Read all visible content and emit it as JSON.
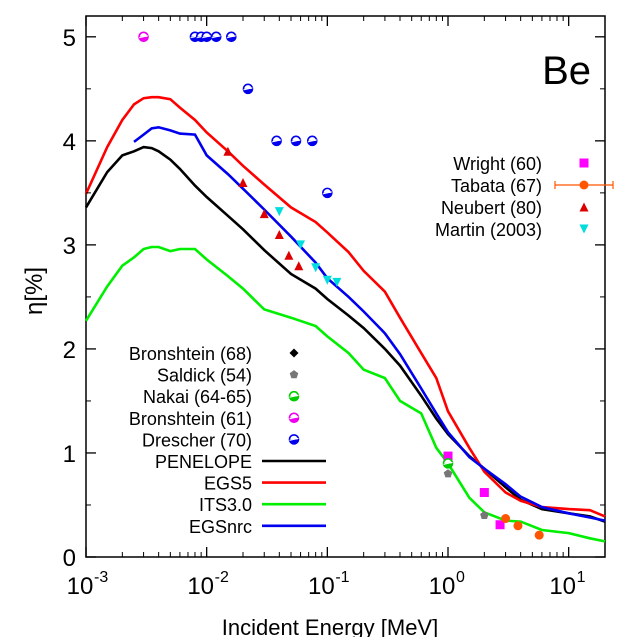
{
  "chart_data": {
    "type": "line",
    "title": "Be",
    "xlabel": "Incident Energy [MeV]",
    "ylabel": "η[%]",
    "x_scale": "log",
    "xlim": [
      0.001,
      20
    ],
    "ylim": [
      0,
      5.2
    ],
    "grid": false,
    "x_ticks": [
      {
        "value": 0.001,
        "base": "10",
        "exp": "-3"
      },
      {
        "value": 0.01,
        "base": "10",
        "exp": "-2"
      },
      {
        "value": 0.1,
        "base": "10",
        "exp": "-1"
      },
      {
        "value": 1,
        "base": "10",
        "exp": "0"
      },
      {
        "value": 10,
        "base": "10",
        "exp": "1"
      }
    ],
    "y_ticks": [
      0,
      1,
      2,
      3,
      4,
      5
    ],
    "series": [
      {
        "name": "PENELOPE",
        "kind": "line",
        "color": "#000000",
        "x": [
          0.001,
          0.0015,
          0.002,
          0.0025,
          0.003,
          0.0035,
          0.004,
          0.005,
          0.006,
          0.008,
          0.01,
          0.015,
          0.02,
          0.03,
          0.05,
          0.08,
          0.1,
          0.15,
          0.2,
          0.3,
          0.4,
          0.6,
          0.8,
          1.0,
          1.5,
          2.0,
          3.0,
          4.0,
          6.0,
          10.0,
          15.0,
          20.0
        ],
        "y": [
          3.36,
          3.7,
          3.86,
          3.9,
          3.94,
          3.93,
          3.9,
          3.82,
          3.73,
          3.57,
          3.46,
          3.28,
          3.15,
          2.95,
          2.72,
          2.58,
          2.48,
          2.32,
          2.2,
          2.0,
          1.84,
          1.55,
          1.33,
          1.18,
          0.97,
          0.85,
          0.67,
          0.55,
          0.46,
          0.42,
          0.39,
          0.34
        ]
      },
      {
        "name": "EGS5",
        "kind": "line",
        "color": "#ff0000",
        "x": [
          0.001,
          0.0015,
          0.002,
          0.0025,
          0.003,
          0.0035,
          0.004,
          0.005,
          0.006,
          0.008,
          0.01,
          0.015,
          0.02,
          0.03,
          0.05,
          0.08,
          0.1,
          0.15,
          0.2,
          0.3,
          0.4,
          0.6,
          0.8,
          1.0,
          1.5,
          2.0,
          3.0,
          4.0,
          6.0,
          10.0,
          15.0,
          20.0
        ],
        "y": [
          3.49,
          3.94,
          4.2,
          4.35,
          4.41,
          4.42,
          4.42,
          4.4,
          4.32,
          4.2,
          4.08,
          3.9,
          3.76,
          3.58,
          3.36,
          3.22,
          3.12,
          2.93,
          2.75,
          2.55,
          2.3,
          1.96,
          1.72,
          1.4,
          1.05,
          0.82,
          0.62,
          0.54,
          0.48,
          0.46,
          0.45,
          0.39
        ]
      },
      {
        "name": "ITS3.0",
        "kind": "line",
        "color": "#00ee00",
        "x": [
          0.001,
          0.0015,
          0.002,
          0.0025,
          0.003,
          0.0035,
          0.004,
          0.005,
          0.006,
          0.008,
          0.01,
          0.015,
          0.02,
          0.03,
          0.05,
          0.08,
          0.1,
          0.15,
          0.2,
          0.3,
          0.4,
          0.6,
          0.8,
          1.0,
          1.5,
          2.0,
          3.0,
          4.0,
          6.0,
          10.0,
          15.0,
          20.0
        ],
        "y": [
          2.27,
          2.6,
          2.8,
          2.88,
          2.96,
          2.98,
          2.98,
          2.94,
          2.96,
          2.96,
          2.86,
          2.7,
          2.58,
          2.38,
          2.3,
          2.22,
          2.12,
          1.96,
          1.8,
          1.72,
          1.5,
          1.38,
          1.05,
          0.9,
          0.57,
          0.43,
          0.35,
          0.34,
          0.26,
          0.23,
          0.18,
          0.15
        ]
      },
      {
        "name": "EGSnrc",
        "kind": "line",
        "color": "#0000ee",
        "x": [
          0.0025,
          0.003,
          0.0035,
          0.004,
          0.005,
          0.006,
          0.008,
          0.01,
          0.015,
          0.02,
          0.03,
          0.05,
          0.08,
          0.1,
          0.15,
          0.2,
          0.3,
          0.4,
          0.6,
          0.8,
          1.0,
          1.5,
          2.0,
          3.0,
          4.0,
          6.0,
          10.0,
          15.0,
          20.0
        ],
        "y": [
          3.99,
          4.06,
          4.12,
          4.13,
          4.1,
          4.07,
          4.06,
          3.86,
          3.68,
          3.54,
          3.34,
          3.08,
          2.83,
          2.68,
          2.5,
          2.36,
          2.15,
          1.95,
          1.62,
          1.38,
          1.2,
          0.96,
          0.85,
          0.7,
          0.58,
          0.48,
          0.42,
          0.38,
          0.35
        ]
      },
      {
        "name": "Wright (60)",
        "kind": "marker",
        "marker": "square",
        "color": "#ff00ff",
        "x": [
          1.0,
          2.0,
          2.7
        ],
        "y": [
          0.97,
          0.62,
          0.31
        ]
      },
      {
        "name": "Tabata (67)",
        "kind": "marker",
        "marker": "circle-errorbar",
        "color": "#ff5500",
        "x": [
          3.0,
          3.8,
          5.7
        ],
        "y": [
          0.37,
          0.3,
          0.21
        ]
      },
      {
        "name": "Neubert (80)",
        "kind": "marker",
        "marker": "triangle-up",
        "color": "#dd0000",
        "x": [
          0.015,
          0.02,
          0.03,
          0.04,
          0.048,
          0.058
        ],
        "y": [
          3.9,
          3.6,
          3.3,
          3.1,
          2.9,
          2.8
        ]
      },
      {
        "name": "Martin (2003)",
        "kind": "marker",
        "marker": "triangle-down",
        "color": "#00dddd",
        "x": [
          0.04,
          0.06,
          0.08,
          0.1,
          0.12
        ],
        "y": [
          3.32,
          3.0,
          2.78,
          2.66,
          2.64
        ]
      },
      {
        "name": "Bronshtein (68)",
        "kind": "marker",
        "marker": "diamond",
        "color": "#000000",
        "x": [],
        "y": []
      },
      {
        "name": "Saldick (54)",
        "kind": "marker",
        "marker": "pentagon",
        "color": "#777777",
        "x": [
          1.0,
          2.0
        ],
        "y": [
          0.8,
          0.4
        ]
      },
      {
        "name": "Nakai (64-65)",
        "kind": "marker",
        "marker": "half-circle",
        "color": "#00cc00",
        "x": [
          1.0
        ],
        "y": [
          0.9
        ]
      },
      {
        "name": "Bronshtein (61)",
        "kind": "marker",
        "marker": "half-circle",
        "color": "#ee00ee",
        "x": [
          0.003
        ],
        "y": [
          5.0
        ]
      },
      {
        "name": "Drescher (70)",
        "kind": "marker",
        "marker": "half-circle",
        "color": "#0000ee",
        "x": [
          0.008,
          0.009,
          0.01,
          0.012,
          0.016,
          0.022,
          0.038,
          0.055,
          0.075,
          0.1
        ],
        "y": [
          5.0,
          5.0,
          5.0,
          5.0,
          5.0,
          4.5,
          4.0,
          4.0,
          4.0,
          3.5
        ]
      }
    ],
    "legend_top_right": [
      "Wright (60)",
      "Tabata (67)",
      "Neubert (80)",
      "Martin (2003)"
    ],
    "legend_bottom_left": [
      "Bronshtein (68)",
      "Saldick (54)",
      "Nakai (64-65)",
      "Bronshtein (61)",
      "Drescher (70)",
      "PENELOPE",
      "EGS5",
      "ITS3.0",
      "EGSnrc"
    ]
  }
}
